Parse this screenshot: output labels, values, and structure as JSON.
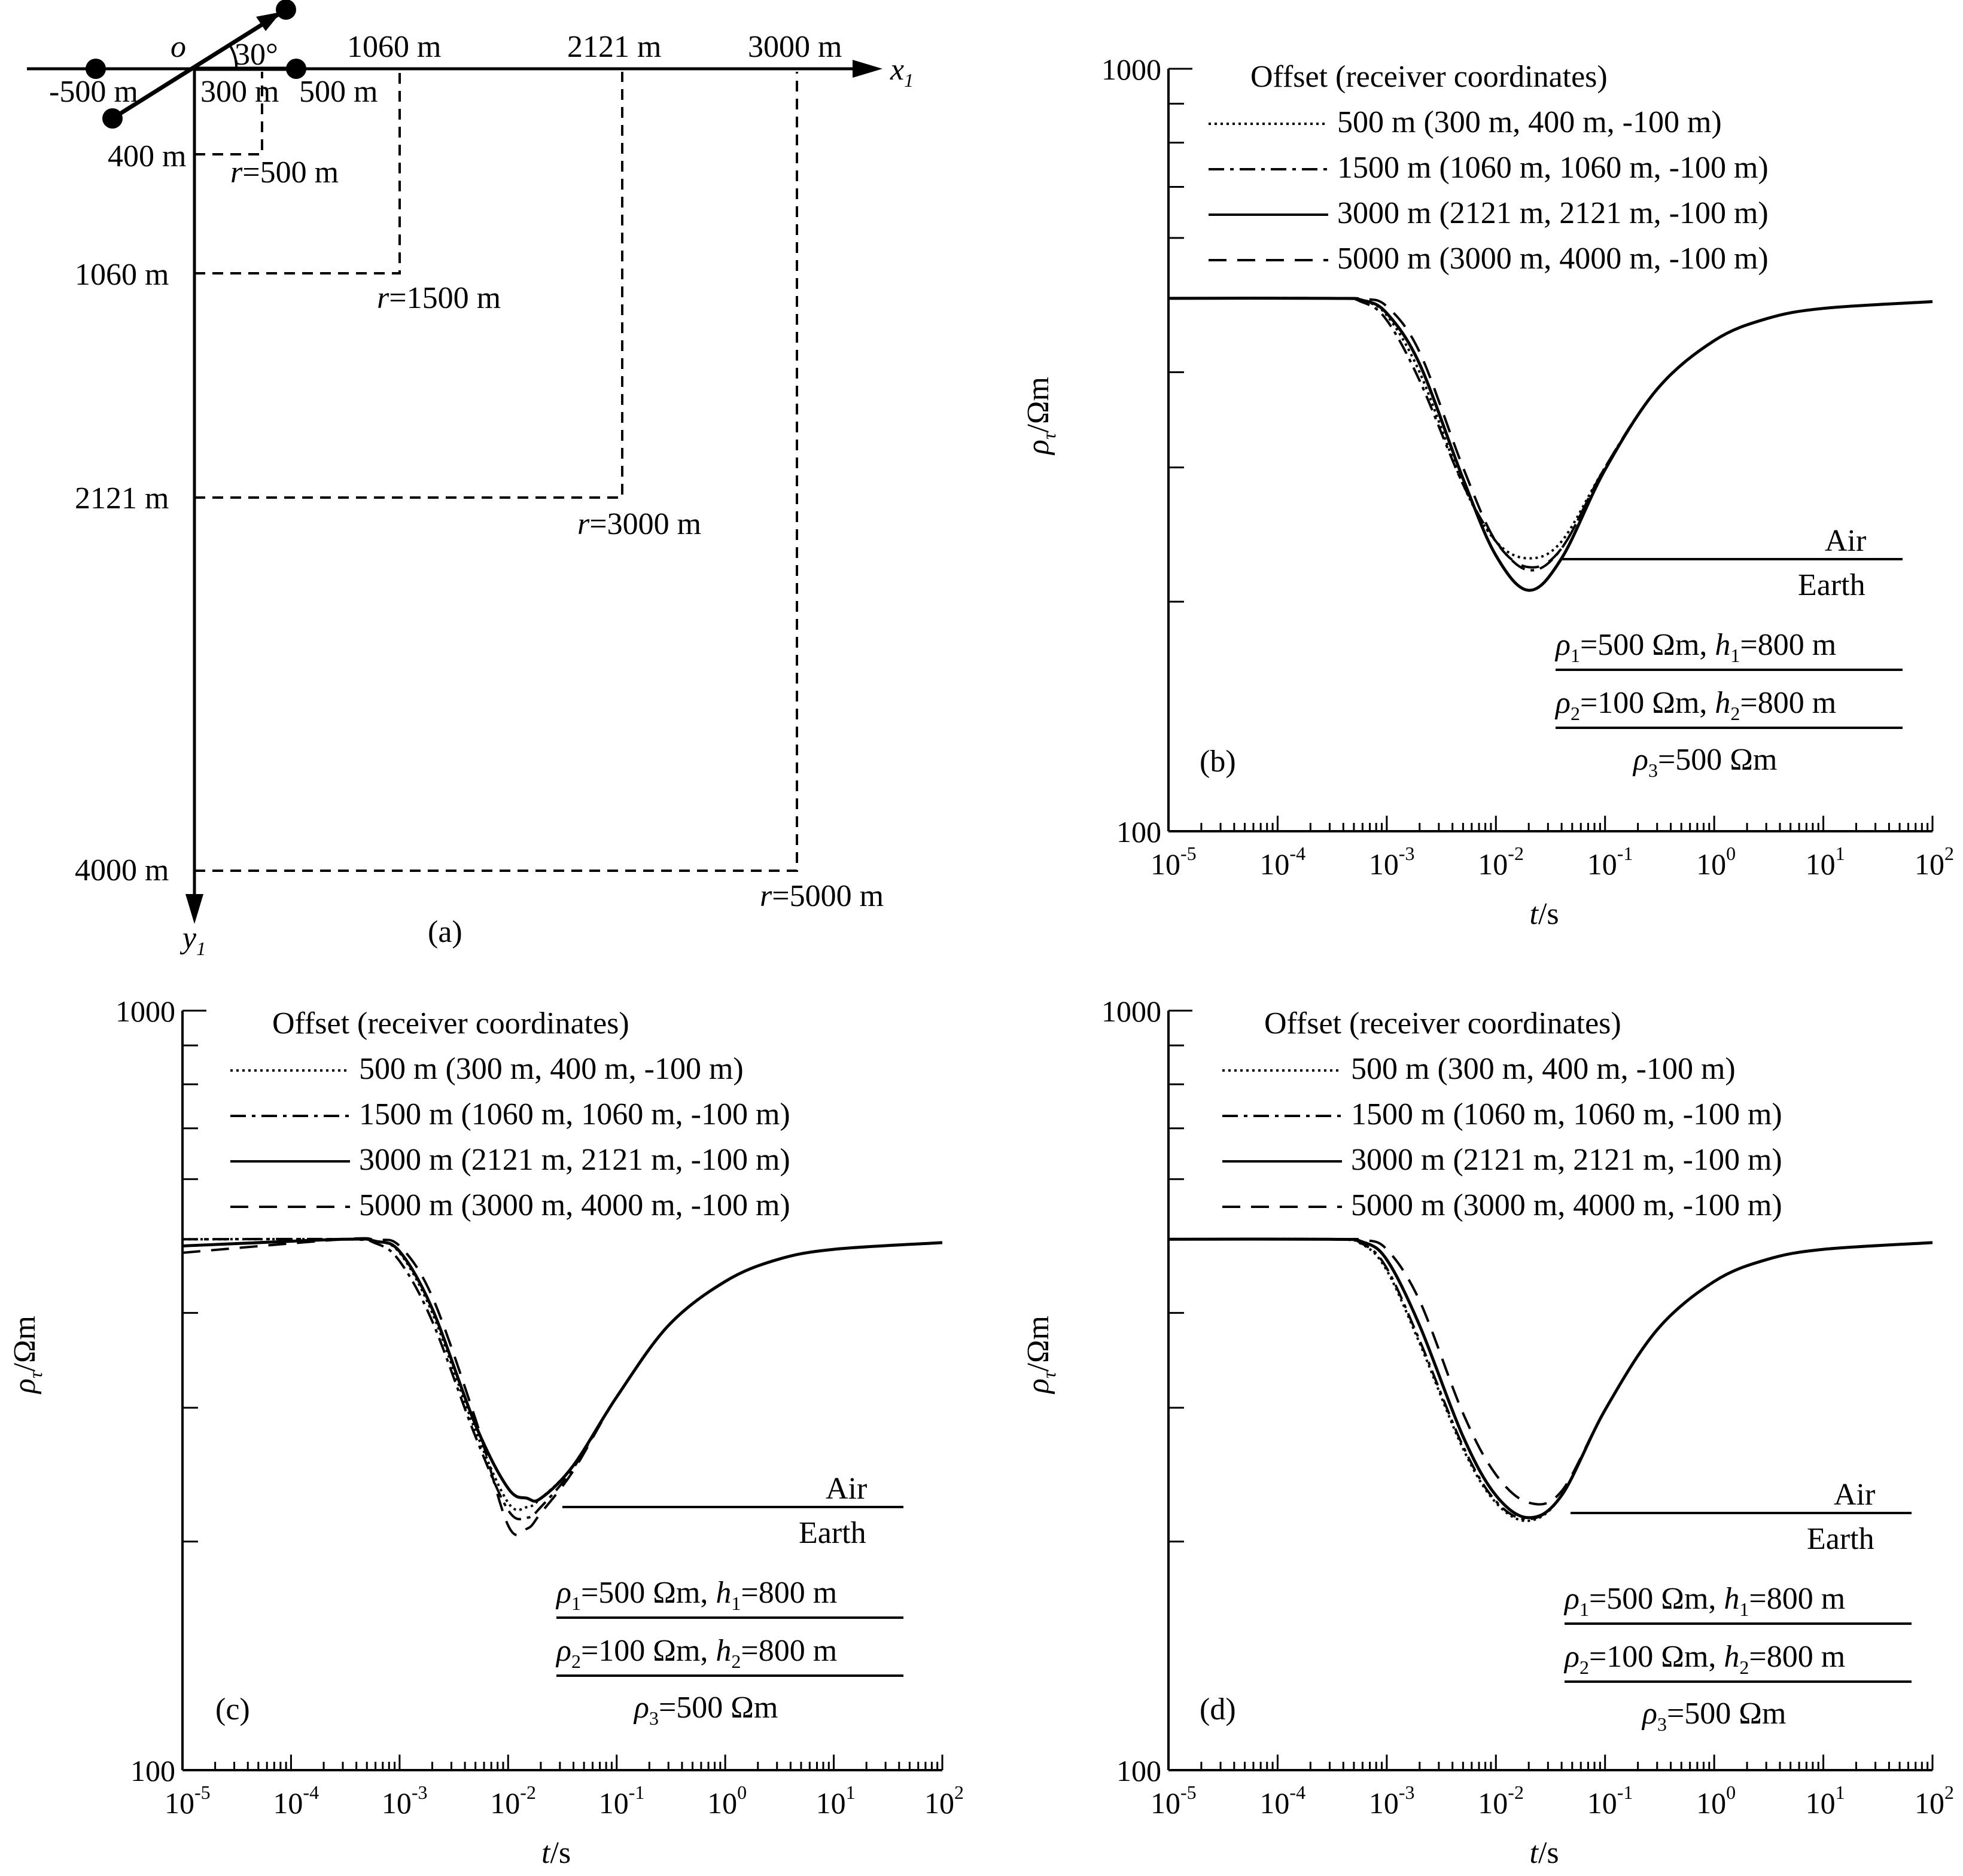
{
  "panel_a": {
    "label": "(a)",
    "origin_label": "o",
    "x_axis_label": "x",
    "x_axis_sub": "1",
    "y_axis_label": "y",
    "y_axis_sub": "1",
    "angle_label": "30°",
    "x_ticks_top": [
      "1060 m",
      "2121 m",
      "3000 m"
    ],
    "x_ticks_bottom": [
      "-500 m",
      "300 m",
      "500 m"
    ],
    "y_ticks": [
      "400 m",
      "1060 m",
      "2121 m",
      "4000 m"
    ],
    "r_var": "r",
    "r_labels": [
      "=500 m",
      "=1500 m",
      "=3000 m",
      "=5000 m"
    ]
  },
  "chart_data": [
    {
      "type": "line",
      "panel": "(b)",
      "xscale": "log",
      "yscale": "log",
      "xlim": [
        1e-05,
        100
      ],
      "ylim": [
        100,
        1000
      ],
      "xlabel": "t/s",
      "ylabel": "ρτ/Ωm",
      "x_tick_labels": [
        "10-5",
        "10-4",
        "10-3",
        "10-2",
        "10-1",
        "100",
        "101",
        "102"
      ],
      "y_tick_labels": [
        "100",
        "1000"
      ],
      "legend_title": "Offset (receiver coordinates)",
      "series": [
        {
          "name": "500 m (300 m, 400 m, -100 m)",
          "style": "dotted",
          "x": [
            1e-05,
            0.0003,
            0.0006,
            0.001,
            0.002,
            0.005,
            0.01,
            0.02,
            0.04,
            0.1,
            0.3,
            1,
            3,
            10,
            100
          ],
          "y": [
            500,
            500,
            496,
            475,
            400,
            285,
            240,
            228,
            240,
            300,
            380,
            440,
            470,
            485,
            495
          ]
        },
        {
          "name": "1500 m (1060 m, 1060 m, -100 m)",
          "style": "dashdot",
          "x": [
            1e-05,
            0.0003,
            0.0006,
            0.001,
            0.002,
            0.005,
            0.01,
            0.02,
            0.04,
            0.1,
            0.3,
            1,
            3,
            10,
            100
          ],
          "y": [
            500,
            500,
            494,
            468,
            390,
            285,
            240,
            220,
            235,
            300,
            380,
            440,
            470,
            485,
            495
          ]
        },
        {
          "name": "3000 m (2121 m, 2121 m, -100 m)",
          "style": "solid",
          "x": [
            1e-05,
            0.0003,
            0.0006,
            0.001,
            0.002,
            0.005,
            0.01,
            0.02,
            0.04,
            0.1,
            0.3,
            1,
            3,
            10,
            100
          ],
          "y": [
            500,
            500,
            497,
            478,
            410,
            290,
            230,
            207,
            228,
            298,
            380,
            440,
            470,
            485,
            495
          ]
        },
        {
          "name": "5000 m (3000 m, 4000 m, -100 m)",
          "style": "dashed",
          "x": [
            1e-05,
            0.0003,
            0.0006,
            0.001,
            0.002,
            0.005,
            0.01,
            0.02,
            0.04,
            0.1,
            0.3,
            1,
            3,
            10,
            100
          ],
          "y": [
            500,
            500,
            499,
            488,
            425,
            300,
            240,
            222,
            235,
            300,
            380,
            440,
            470,
            485,
            495
          ]
        }
      ],
      "annotations": {
        "air": "Air",
        "earth": "Earth",
        "rho": "ρ",
        "h": "h",
        "layer1_a": "=500 Ωm, ",
        "layer1_b": "=800 m",
        "layer2_a": "=100 Ωm, ",
        "layer2_b": "=800 m",
        "layer3": "=500 Ωm"
      }
    },
    {
      "type": "line",
      "panel": "(c)",
      "xscale": "log",
      "yscale": "log",
      "xlim": [
        1e-05,
        100
      ],
      "ylim": [
        100,
        1000
      ],
      "xlabel": "t/s",
      "ylabel": "ρτ/Ωm",
      "x_tick_labels": [
        "10-5",
        "10-4",
        "10-3",
        "10-2",
        "10-1",
        "100",
        "101",
        "102"
      ],
      "y_tick_labels": [
        "100",
        "1000"
      ],
      "legend_title": "Offset (receiver coordinates)",
      "series": [
        {
          "name": "500 m (300 m, 400 m, -100 m)",
          "style": "dotted",
          "x": [
            1e-05,
            0.0003,
            0.0006,
            0.001,
            0.002,
            0.005,
            0.01,
            0.015,
            0.02,
            0.04,
            0.1,
            0.3,
            1,
            3,
            10,
            100
          ],
          "y": [
            500,
            500,
            497,
            480,
            400,
            280,
            225,
            222,
            228,
            252,
            310,
            385,
            440,
            470,
            485,
            495
          ]
        },
        {
          "name": "1500 m (1060 m, 1060 m, -100 m)",
          "style": "dashdot",
          "x": [
            1e-05,
            0.0003,
            0.0006,
            0.001,
            0.002,
            0.005,
            0.01,
            0.015,
            0.02,
            0.04,
            0.1,
            0.3,
            1,
            3,
            10,
            100
          ],
          "y": [
            500,
            500,
            494,
            468,
            390,
            275,
            220,
            215,
            222,
            250,
            310,
            385,
            440,
            470,
            485,
            495
          ]
        },
        {
          "name": "3000 m (2121 m, 2121 m, -100 m)",
          "style": "solid",
          "x": [
            1e-05,
            0.0003,
            0.0006,
            0.001,
            0.002,
            0.005,
            0.01,
            0.015,
            0.02,
            0.04,
            0.1,
            0.3,
            1,
            3,
            10,
            100
          ],
          "y": [
            490,
            500,
            497,
            482,
            405,
            285,
            235,
            228,
            228,
            252,
            310,
            385,
            440,
            470,
            485,
            495
          ]
        },
        {
          "name": "5000 m (3000 m, 4000 m, -100 m)",
          "style": "dashed",
          "x": [
            1e-05,
            0.0003,
            0.0006,
            0.001,
            0.002,
            0.005,
            0.01,
            0.015,
            0.02,
            0.04,
            0.1,
            0.3,
            1,
            3,
            10,
            100
          ],
          "y": [
            480,
            500,
            499,
            490,
            420,
            290,
            210,
            208,
            218,
            248,
            310,
            385,
            440,
            470,
            485,
            495
          ]
        }
      ],
      "annotations": {
        "air": "Air",
        "earth": "Earth",
        "rho": "ρ",
        "h": "h",
        "layer1_a": "=500 Ωm, ",
        "layer1_b": "=800 m",
        "layer2_a": "=100 Ωm, ",
        "layer2_b": "=800 m",
        "layer3": "=500 Ωm"
      }
    },
    {
      "type": "line",
      "panel": "(d)",
      "xscale": "log",
      "yscale": "log",
      "xlim": [
        1e-05,
        100
      ],
      "ylim": [
        100,
        1000
      ],
      "xlabel": "t/s",
      "ylabel": "ρτ/Ωm",
      "x_tick_labels": [
        "10-5",
        "10-4",
        "10-3",
        "10-2",
        "10-1",
        "100",
        "101",
        "102"
      ],
      "y_tick_labels": [
        "100",
        "1000"
      ],
      "legend_title": "Offset (receiver coordinates)",
      "series": [
        {
          "name": "500 m (300 m, 400 m, -100 m)",
          "style": "dotted",
          "x": [
            1e-05,
            0.0003,
            0.0006,
            0.001,
            0.002,
            0.005,
            0.01,
            0.02,
            0.04,
            0.1,
            0.3,
            1,
            3,
            10,
            100
          ],
          "y": [
            500,
            500,
            492,
            455,
            365,
            265,
            225,
            213,
            230,
            298,
            380,
            440,
            470,
            485,
            495
          ]
        },
        {
          "name": "1500 m (1060 m, 1060 m, -100 m)",
          "style": "dashdot",
          "x": [
            1e-05,
            0.0003,
            0.0006,
            0.001,
            0.002,
            0.005,
            0.01,
            0.02,
            0.04,
            0.1,
            0.3,
            1,
            3,
            10,
            100
          ],
          "y": [
            500,
            500,
            493,
            458,
            368,
            267,
            226,
            214,
            230,
            298,
            380,
            440,
            470,
            485,
            495
          ]
        },
        {
          "name": "3000 m (2121 m, 2121 m, -100 m)",
          "style": "solid",
          "x": [
            1e-05,
            0.0003,
            0.0006,
            0.001,
            0.002,
            0.005,
            0.01,
            0.02,
            0.04,
            0.1,
            0.3,
            1,
            3,
            10,
            100
          ],
          "y": [
            500,
            500,
            496,
            470,
            385,
            275,
            230,
            215,
            230,
            298,
            380,
            440,
            470,
            485,
            495
          ]
        },
        {
          "name": "5000 m (3000 m, 4000 m, -100 m)",
          "style": "dashed",
          "x": [
            1e-05,
            0.0003,
            0.0006,
            0.001,
            0.002,
            0.005,
            0.01,
            0.02,
            0.04,
            0.1,
            0.3,
            1,
            3,
            10,
            100
          ],
          "y": [
            500,
            500,
            499,
            485,
            415,
            295,
            245,
            225,
            233,
            298,
            380,
            440,
            470,
            485,
            495
          ]
        }
      ],
      "annotations": {
        "air": "Air",
        "earth": "Earth",
        "rho": "ρ",
        "h": "h",
        "layer1_a": "=500 Ωm, ",
        "layer1_b": "=800 m",
        "layer2_a": "=100 Ωm, ",
        "layer2_b": "=800 m",
        "layer3": "=500 Ωm"
      }
    }
  ]
}
